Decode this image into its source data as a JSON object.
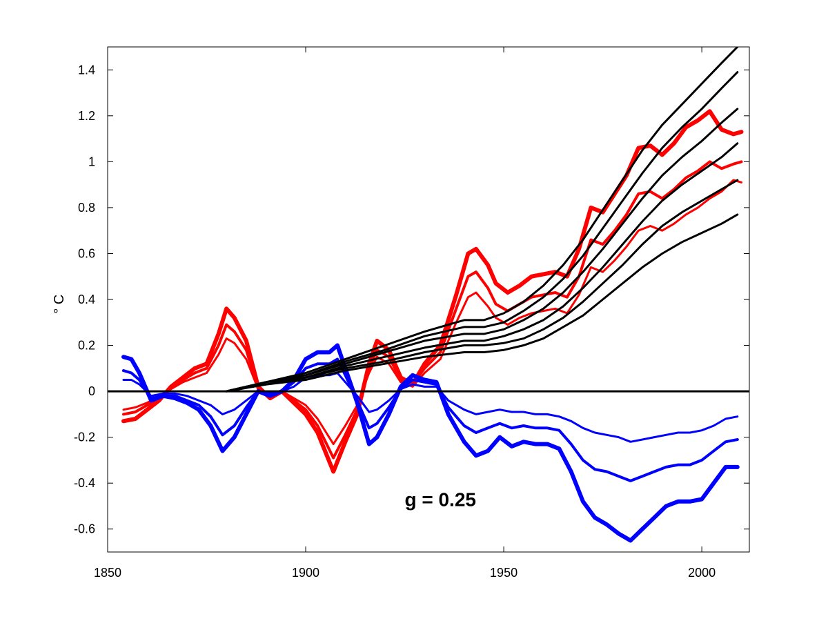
{
  "chart_data": {
    "type": "line",
    "title": "",
    "xlabel": "",
    "ylabel": "° C",
    "xlim": [
      1850,
      2012
    ],
    "ylim": [
      -0.7,
      1.5
    ],
    "xticks": [
      1850,
      1900,
      1950,
      2000
    ],
    "yticks": [
      -0.6,
      -0.4,
      -0.2,
      0,
      0.2,
      0.4,
      0.6,
      0.8,
      1,
      1.2,
      1.4
    ],
    "ytick_labels": [
      "-0.6",
      "-0.4",
      "-0.2",
      "0",
      "0.2",
      "0.4",
      "0.6",
      "0.8",
      "1",
      "1.2",
      "1.4"
    ],
    "grid": false,
    "legend": "none",
    "annotations": [
      {
        "text": "g = 0.25",
        "x": 1934,
        "y": -0.5
      }
    ],
    "colors": {
      "red": "#ff0000",
      "blue": "#0000ff",
      "black": "#000000"
    },
    "series": [
      {
        "color": "#ff0000",
        "width": 6,
        "x": [
          1854,
          1857,
          1860,
          1863,
          1866,
          1869,
          1872,
          1875,
          1878,
          1880,
          1882,
          1885,
          1888,
          1891,
          1894,
          1897,
          1900,
          1903,
          1907,
          1910,
          1913,
          1916,
          1918,
          1921,
          1924,
          1927,
          1930,
          1934,
          1938,
          1941,
          1943,
          1946,
          1948,
          1951,
          1954,
          1957,
          1960,
          1963,
          1966,
          1969,
          1972,
          1975,
          1978,
          1981,
          1984,
          1987,
          1990,
          1993,
          1996,
          1999,
          2002,
          2005,
          2008,
          2010
        ],
        "y": [
          -0.13,
          -0.12,
          -0.08,
          -0.04,
          0.02,
          0.06,
          0.1,
          0.12,
          0.25,
          0.36,
          0.32,
          0.22,
          0.02,
          -0.03,
          0.0,
          -0.05,
          -0.1,
          -0.18,
          -0.35,
          -0.22,
          -0.1,
          0.12,
          0.22,
          0.18,
          0.06,
          0.03,
          0.12,
          0.2,
          0.42,
          0.6,
          0.62,
          0.55,
          0.47,
          0.43,
          0.46,
          0.5,
          0.51,
          0.52,
          0.5,
          0.62,
          0.8,
          0.78,
          0.86,
          0.94,
          1.06,
          1.07,
          1.03,
          1.08,
          1.15,
          1.18,
          1.22,
          1.14,
          1.12,
          1.13
        ]
      },
      {
        "color": "#ff0000",
        "width": 4,
        "x": [
          1854,
          1857,
          1860,
          1863,
          1866,
          1869,
          1872,
          1875,
          1878,
          1880,
          1882,
          1885,
          1888,
          1891,
          1894,
          1897,
          1900,
          1903,
          1907,
          1910,
          1913,
          1916,
          1918,
          1921,
          1924,
          1927,
          1930,
          1934,
          1938,
          1941,
          1943,
          1946,
          1948,
          1951,
          1954,
          1957,
          1960,
          1963,
          1966,
          1969,
          1972,
          1975,
          1978,
          1981,
          1984,
          1987,
          1990,
          1993,
          1996,
          1999,
          2002,
          2005,
          2008,
          2010
        ],
        "y": [
          -0.1,
          -0.09,
          -0.06,
          -0.03,
          0.02,
          0.05,
          0.08,
          0.1,
          0.2,
          0.29,
          0.26,
          0.18,
          0.01,
          -0.02,
          0.0,
          -0.04,
          -0.08,
          -0.15,
          -0.29,
          -0.19,
          -0.08,
          0.1,
          0.18,
          0.15,
          0.05,
          0.03,
          0.1,
          0.17,
          0.36,
          0.5,
          0.52,
          0.45,
          0.38,
          0.35,
          0.38,
          0.41,
          0.42,
          0.43,
          0.41,
          0.5,
          0.66,
          0.64,
          0.7,
          0.77,
          0.86,
          0.87,
          0.84,
          0.88,
          0.93,
          0.96,
          1.0,
          0.97,
          0.99,
          1.0
        ]
      },
      {
        "color": "#ff0000",
        "width": 3,
        "x": [
          1854,
          1857,
          1860,
          1863,
          1866,
          1869,
          1872,
          1875,
          1878,
          1880,
          1882,
          1885,
          1888,
          1891,
          1894,
          1897,
          1900,
          1903,
          1907,
          1910,
          1913,
          1916,
          1918,
          1921,
          1924,
          1927,
          1930,
          1934,
          1938,
          1941,
          1943,
          1946,
          1948,
          1951,
          1954,
          1957,
          1960,
          1963,
          1966,
          1969,
          1972,
          1975,
          1978,
          1981,
          1984,
          1987,
          1990,
          1993,
          1996,
          1999,
          2002,
          2005,
          2008,
          2010
        ],
        "y": [
          -0.08,
          -0.07,
          -0.05,
          -0.02,
          0.01,
          0.04,
          0.06,
          0.08,
          0.16,
          0.23,
          0.21,
          0.14,
          0.01,
          -0.01,
          0.0,
          -0.03,
          -0.06,
          -0.12,
          -0.23,
          -0.15,
          -0.06,
          0.08,
          0.15,
          0.12,
          0.04,
          0.02,
          0.08,
          0.14,
          0.3,
          0.41,
          0.43,
          0.37,
          0.32,
          0.29,
          0.32,
          0.34,
          0.35,
          0.36,
          0.34,
          0.42,
          0.54,
          0.52,
          0.57,
          0.63,
          0.7,
          0.72,
          0.7,
          0.73,
          0.77,
          0.8,
          0.84,
          0.87,
          0.92,
          0.91
        ]
      },
      {
        "color": "#0000ff",
        "width": 6,
        "x": [
          1854,
          1856,
          1858,
          1861,
          1864,
          1867,
          1870,
          1873,
          1876,
          1879,
          1882,
          1885,
          1888,
          1891,
          1894,
          1897,
          1900,
          1903,
          1906,
          1908,
          1910,
          1913,
          1916,
          1918,
          1921,
          1924,
          1927,
          1930,
          1933,
          1936,
          1940,
          1943,
          1946,
          1949,
          1952,
          1955,
          1958,
          1961,
          1964,
          1967,
          1970,
          1973,
          1976,
          1979,
          1982,
          1985,
          1988,
          1991,
          1994,
          1997,
          2000,
          2003,
          2006,
          2009
        ],
        "y": [
          0.15,
          0.14,
          0.08,
          -0.04,
          -0.02,
          -0.03,
          -0.05,
          -0.08,
          -0.15,
          -0.26,
          -0.2,
          -0.1,
          0.0,
          -0.02,
          0.0,
          0.05,
          0.14,
          0.17,
          0.17,
          0.2,
          0.1,
          -0.05,
          -0.23,
          -0.2,
          -0.1,
          0.02,
          0.07,
          0.05,
          0.04,
          -0.1,
          -0.22,
          -0.28,
          -0.26,
          -0.2,
          -0.24,
          -0.22,
          -0.23,
          -0.23,
          -0.25,
          -0.35,
          -0.48,
          -0.55,
          -0.58,
          -0.62,
          -0.65,
          -0.6,
          -0.55,
          -0.5,
          -0.48,
          -0.48,
          -0.47,
          -0.4,
          -0.33,
          -0.33
        ]
      },
      {
        "color": "#0000ff",
        "width": 4,
        "x": [
          1854,
          1856,
          1858,
          1861,
          1864,
          1867,
          1870,
          1873,
          1876,
          1879,
          1882,
          1885,
          1888,
          1891,
          1894,
          1897,
          1900,
          1903,
          1906,
          1908,
          1910,
          1913,
          1916,
          1918,
          1921,
          1924,
          1927,
          1930,
          1933,
          1936,
          1940,
          1943,
          1946,
          1949,
          1952,
          1955,
          1958,
          1961,
          1964,
          1967,
          1970,
          1973,
          1976,
          1979,
          1982,
          1985,
          1988,
          1991,
          1994,
          1997,
          2000,
          2003,
          2006,
          2009
        ],
        "y": [
          0.09,
          0.08,
          0.05,
          -0.03,
          -0.02,
          -0.02,
          -0.04,
          -0.06,
          -0.11,
          -0.19,
          -0.15,
          -0.07,
          0.0,
          -0.01,
          0.0,
          0.04,
          0.1,
          0.12,
          0.12,
          0.14,
          0.07,
          -0.04,
          -0.16,
          -0.14,
          -0.07,
          0.01,
          0.05,
          0.04,
          0.03,
          -0.07,
          -0.15,
          -0.18,
          -0.16,
          -0.14,
          -0.16,
          -0.15,
          -0.16,
          -0.16,
          -0.17,
          -0.23,
          -0.3,
          -0.34,
          -0.35,
          -0.37,
          -0.39,
          -0.37,
          -0.35,
          -0.33,
          -0.32,
          -0.32,
          -0.3,
          -0.26,
          -0.22,
          -0.21
        ]
      },
      {
        "color": "#0000ff",
        "width": 3,
        "x": [
          1854,
          1856,
          1858,
          1861,
          1864,
          1867,
          1870,
          1873,
          1876,
          1879,
          1882,
          1885,
          1888,
          1891,
          1894,
          1897,
          1900,
          1903,
          1906,
          1908,
          1910,
          1913,
          1916,
          1918,
          1921,
          1924,
          1927,
          1930,
          1933,
          1936,
          1940,
          1943,
          1946,
          1949,
          1952,
          1955,
          1958,
          1961,
          1964,
          1967,
          1970,
          1973,
          1976,
          1979,
          1982,
          1985,
          1988,
          1991,
          1994,
          1997,
          2000,
          2003,
          2006,
          2009
        ],
        "y": [
          0.05,
          0.05,
          0.03,
          -0.02,
          -0.01,
          -0.01,
          -0.02,
          -0.04,
          -0.06,
          -0.1,
          -0.08,
          -0.04,
          0.0,
          -0.01,
          0.0,
          0.02,
          0.06,
          0.07,
          0.07,
          0.08,
          0.04,
          -0.02,
          -0.09,
          -0.08,
          -0.04,
          0.01,
          0.03,
          0.02,
          0.02,
          -0.04,
          -0.08,
          -0.1,
          -0.09,
          -0.08,
          -0.09,
          -0.09,
          -0.1,
          -0.1,
          -0.11,
          -0.13,
          -0.16,
          -0.18,
          -0.19,
          -0.2,
          -0.22,
          -0.21,
          -0.2,
          -0.19,
          -0.18,
          -0.18,
          -0.17,
          -0.15,
          -0.12,
          -0.11
        ]
      },
      {
        "color": "#000000",
        "width": 3,
        "x": [
          1880,
          1890,
          1900,
          1910,
          1920,
          1930,
          1940,
          1945,
          1950,
          1955,
          1960,
          1965,
          1970,
          1975,
          1980,
          1985,
          1990,
          1995,
          2000,
          2005,
          2009
        ],
        "y": [
          0.0,
          0.04,
          0.08,
          0.14,
          0.2,
          0.26,
          0.31,
          0.31,
          0.34,
          0.39,
          0.46,
          0.55,
          0.66,
          0.79,
          0.92,
          1.05,
          1.16,
          1.25,
          1.34,
          1.43,
          1.5
        ]
      },
      {
        "color": "#000000",
        "width": 3,
        "x": [
          1880,
          1890,
          1900,
          1910,
          1920,
          1930,
          1940,
          1945,
          1950,
          1955,
          1960,
          1965,
          1970,
          1975,
          1980,
          1985,
          1990,
          1995,
          2000,
          2005,
          2009
        ],
        "y": [
          0.0,
          0.04,
          0.07,
          0.13,
          0.18,
          0.24,
          0.28,
          0.28,
          0.3,
          0.35,
          0.41,
          0.49,
          0.59,
          0.71,
          0.83,
          0.95,
          1.06,
          1.15,
          1.23,
          1.32,
          1.39
        ]
      },
      {
        "color": "#000000",
        "width": 3,
        "x": [
          1880,
          1890,
          1900,
          1910,
          1920,
          1930,
          1940,
          1945,
          1950,
          1955,
          1960,
          1965,
          1970,
          1975,
          1980,
          1985,
          1990,
          1995,
          2000,
          2005,
          2009
        ],
        "y": [
          0.0,
          0.04,
          0.07,
          0.12,
          0.17,
          0.22,
          0.25,
          0.25,
          0.27,
          0.31,
          0.36,
          0.43,
          0.52,
          0.62,
          0.73,
          0.84,
          0.94,
          1.02,
          1.09,
          1.17,
          1.23
        ]
      },
      {
        "color": "#000000",
        "width": 3,
        "x": [
          1880,
          1890,
          1900,
          1910,
          1920,
          1930,
          1940,
          1945,
          1950,
          1955,
          1960,
          1965,
          1970,
          1975,
          1980,
          1985,
          1990,
          1995,
          2000,
          2005,
          2009
        ],
        "y": [
          0.0,
          0.04,
          0.06,
          0.11,
          0.15,
          0.19,
          0.22,
          0.22,
          0.24,
          0.27,
          0.31,
          0.37,
          0.45,
          0.54,
          0.64,
          0.74,
          0.83,
          0.9,
          0.96,
          1.02,
          1.08
        ]
      },
      {
        "color": "#000000",
        "width": 3,
        "x": [
          1880,
          1890,
          1900,
          1910,
          1920,
          1930,
          1940,
          1945,
          1950,
          1955,
          1960,
          1965,
          1970,
          1975,
          1980,
          1985,
          1990,
          1995,
          2000,
          2005,
          2009
        ],
        "y": [
          0.0,
          0.03,
          0.06,
          0.1,
          0.13,
          0.17,
          0.2,
          0.2,
          0.21,
          0.23,
          0.27,
          0.32,
          0.39,
          0.47,
          0.55,
          0.64,
          0.72,
          0.78,
          0.83,
          0.88,
          0.92
        ]
      },
      {
        "color": "#000000",
        "width": 3,
        "x": [
          1880,
          1890,
          1900,
          1910,
          1920,
          1930,
          1940,
          1945,
          1950,
          1955,
          1960,
          1965,
          1970,
          1975,
          1980,
          1985,
          1990,
          1995,
          2000,
          2005,
          2009
        ],
        "y": [
          0.0,
          0.03,
          0.05,
          0.09,
          0.12,
          0.15,
          0.17,
          0.17,
          0.18,
          0.2,
          0.23,
          0.28,
          0.33,
          0.4,
          0.47,
          0.54,
          0.6,
          0.65,
          0.69,
          0.73,
          0.77
        ]
      }
    ]
  }
}
